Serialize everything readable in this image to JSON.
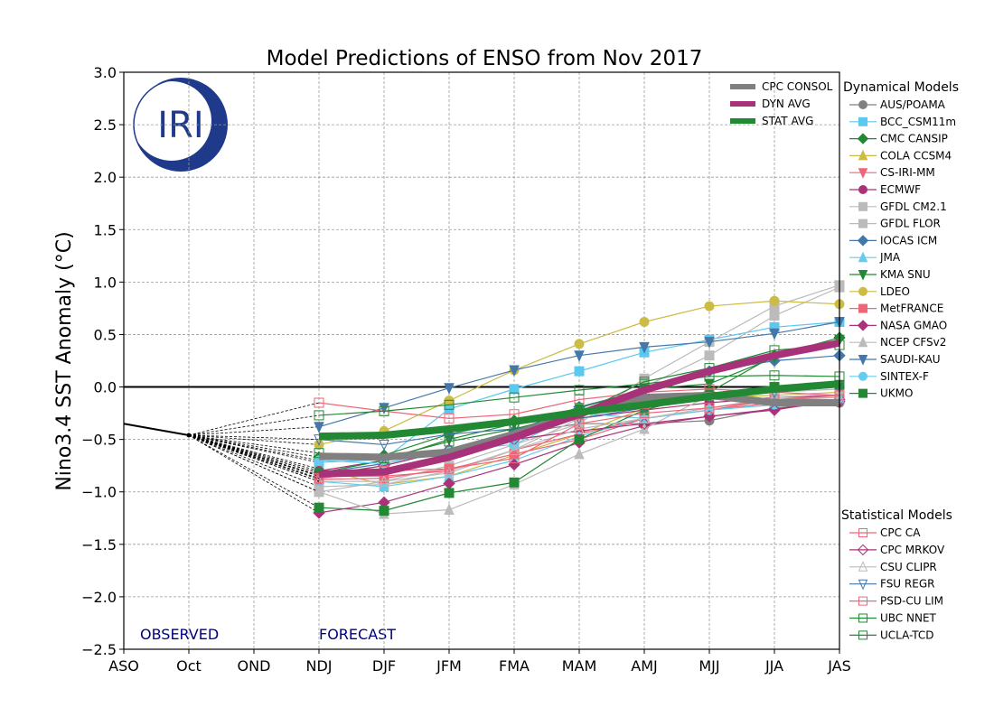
{
  "chart_data": {
    "type": "line",
    "title": "Model Predictions of ENSO from Nov 2017",
    "ylabel": "Nino3.4 SST Anomaly (°C)",
    "xlabel": "",
    "categories": [
      "ASO",
      "Oct",
      "OND",
      "NDJ",
      "DJF",
      "JFM",
      "FMA",
      "MAM",
      "AMJ",
      "MJJ",
      "JJA",
      "JAS"
    ],
    "ylim": [
      -2.5,
      3.0
    ],
    "yticks": [
      "−2.5",
      "−2.0",
      "−1.5",
      "−1.0",
      "−0.5",
      "0.0",
      "0.5",
      "1.0",
      "1.5",
      "2.0",
      "2.5",
      "3.0"
    ],
    "grid": true,
    "annotations": {
      "observed": "OBSERVED",
      "forecast": "FORECAST"
    },
    "logo": "IRI",
    "observed": {
      "categories": [
        "ASO",
        "Oct"
      ],
      "values": [
        -0.35,
        -0.46
      ],
      "color": "#000000"
    },
    "forecast_categories": [
      "NDJ",
      "DJF",
      "JFM",
      "FMA",
      "MAM",
      "AMJ",
      "MJJ",
      "JJA",
      "JAS"
    ],
    "averages": [
      {
        "name": "CPC CONSOL",
        "color": "#808080",
        "values": [
          -0.66,
          -0.67,
          -0.62,
          -0.45,
          -0.25,
          -0.1,
          -0.08,
          -0.15,
          -0.15
        ]
      },
      {
        "name": "DYN AVG",
        "color": "#a8327a",
        "values": [
          -0.83,
          -0.81,
          -0.67,
          -0.48,
          -0.26,
          -0.03,
          0.15,
          0.3,
          0.42
        ]
      },
      {
        "name": "STAT AVG",
        "color": "#228833",
        "values": [
          -0.47,
          -0.46,
          -0.4,
          -0.33,
          -0.24,
          -0.17,
          -0.09,
          -0.02,
          0.03
        ]
      }
    ],
    "dynamical_title": "Dynamical Models",
    "dynamical": [
      {
        "name": "AUS/POAMA",
        "color": "#808080",
        "marker": "circle",
        "values": [
          -0.84,
          -0.75,
          -0.6,
          -0.45,
          -0.35,
          -0.35,
          -0.32,
          -0.2,
          -0.15
        ]
      },
      {
        "name": "BCC_CSM11m",
        "color": "#5bc8f0",
        "marker": "square",
        "values": [
          -0.72,
          -0.69,
          -0.21,
          -0.02,
          0.15,
          0.33,
          0.45,
          0.57,
          0.62
        ]
      },
      {
        "name": "CMC CANSIP",
        "color": "#228833",
        "marker": "diamond",
        "values": [
          -0.67,
          -0.65,
          -0.45,
          -0.32,
          -0.23,
          -0.18,
          -0.05,
          0.3,
          0.47
        ]
      },
      {
        "name": "COLA CCSM4",
        "color": "#ccbb44",
        "marker": "triangle-up",
        "values": [
          -0.78,
          -0.93,
          -0.85,
          -0.65,
          -0.45,
          -0.2,
          -0.1,
          -0.08,
          -0.05
        ]
      },
      {
        "name": "CS-IRI-MM",
        "color": "#ee6677",
        "marker": "triangle-down",
        "values": [
          -0.85,
          -0.85,
          -0.8,
          -0.6,
          -0.45,
          -0.3,
          -0.22,
          -0.15,
          -0.12
        ]
      },
      {
        "name": "ECMWF",
        "color": "#aa3377",
        "marker": "circle",
        "values": [
          -0.8,
          -0.7,
          -0.6,
          -0.45,
          -0.3,
          -0.22,
          -0.15,
          -0.1,
          -0.08
        ]
      },
      {
        "name": "GFDL CM2.1",
        "color": "#bbbbbb",
        "marker": "square",
        "values": [
          -1.0,
          -0.9,
          -0.75,
          -0.55,
          -0.35,
          0.08,
          0.43,
          0.77,
          0.97
        ]
      },
      {
        "name": "GFDL FLOR",
        "color": "#bbbbbb",
        "marker": "square",
        "values": [
          -0.95,
          -0.93,
          -0.8,
          -0.6,
          -0.3,
          0.0,
          0.3,
          0.68,
          0.95
        ]
      },
      {
        "name": "IOCAS ICM",
        "color": "#4477aa",
        "marker": "diamond",
        "values": [
          -0.82,
          -0.73,
          -0.6,
          -0.42,
          -0.19,
          -0.03,
          0.15,
          0.25,
          0.3
        ]
      },
      {
        "name": "JMA",
        "color": "#66ccee",
        "marker": "triangle-up",
        "values": [
          -0.9,
          -0.95,
          -0.85,
          -0.7,
          -0.47,
          -0.3,
          -0.22,
          -0.17,
          -0.12
        ]
      },
      {
        "name": "KMA SNU",
        "color": "#228833",
        "marker": "triangle-down",
        "values": [
          -0.82,
          -0.7,
          -0.5,
          -0.35,
          -0.2,
          -0.02,
          0.03,
          0.28,
          0.45
        ]
      },
      {
        "name": "LDEO",
        "color": "#ccbb44",
        "marker": "circle",
        "values": [
          -0.55,
          -0.42,
          -0.13,
          0.16,
          0.41,
          0.62,
          0.77,
          0.82,
          0.79
        ]
      },
      {
        "name": "MetFRANCE",
        "color": "#ee6677",
        "marker": "square",
        "values": [
          -0.88,
          -0.87,
          -0.78,
          -0.64,
          -0.5,
          -0.3,
          -0.22,
          -0.12,
          -0.1
        ]
      },
      {
        "name": "NASA GMAO",
        "color": "#aa3377",
        "marker": "diamond",
        "values": [
          -1.2,
          -1.1,
          -0.92,
          -0.74,
          -0.53,
          -0.37,
          -0.28,
          -0.21,
          -0.14
        ]
      },
      {
        "name": "NCEP CFSv2",
        "color": "#bbbbbb",
        "marker": "triangle-up",
        "values": [
          -1.0,
          -1.21,
          -1.17,
          -0.93,
          -0.64,
          -0.4,
          -0.08,
          -0.05,
          -0.02
        ]
      },
      {
        "name": "SAUDI-KAU",
        "color": "#4477aa",
        "marker": "triangle-down",
        "values": [
          -0.38,
          -0.2,
          -0.01,
          0.16,
          0.3,
          0.38,
          0.43,
          0.51,
          0.62
        ]
      },
      {
        "name": "SINTEX-F",
        "color": "#66ccee",
        "marker": "circle",
        "values": [
          -0.7,
          -0.73,
          -0.6,
          -0.55,
          -0.25,
          -0.3,
          -0.22,
          -0.17,
          -0.12
        ]
      },
      {
        "name": "UKMO",
        "color": "#228833",
        "marker": "square",
        "values": [
          -1.15,
          -1.18,
          -1.01,
          -0.91,
          -0.5,
          -0.22,
          -0.06,
          0.0,
          0.02
        ]
      }
    ],
    "statistical_title": "Statistical Models",
    "statistical": [
      {
        "name": "CPC CA",
        "color": "#ee6677",
        "marker": "square",
        "values": [
          -0.15,
          -0.23,
          -0.3,
          -0.26,
          -0.12,
          -0.05,
          -0.02,
          -0.05,
          -0.08
        ]
      },
      {
        "name": "CPC MRKOV",
        "color": "#aa3377",
        "marker": "diamond",
        "values": [
          -0.85,
          -0.75,
          -0.6,
          -0.5,
          -0.42,
          -0.35,
          -0.28,
          -0.22,
          -0.12
        ]
      },
      {
        "name": "CSU CLIPR",
        "color": "#bbbbbb",
        "marker": "triangle-up",
        "values": [
          -0.9,
          -0.9,
          -0.82,
          -0.6,
          -0.4,
          -0.3,
          -0.2,
          -0.1,
          -0.1
        ]
      },
      {
        "name": "FSU REGR",
        "color": "#4477aa",
        "marker": "triangle-down",
        "values": [
          -0.5,
          -0.55,
          -0.45,
          -0.4,
          -0.3,
          -0.2,
          -0.1,
          -0.05,
          0.0
        ]
      },
      {
        "name": "PSD-CU LIM",
        "color": "#ee6677",
        "marker": "square",
        "values": [
          -0.87,
          -0.8,
          -0.78,
          -0.68,
          -0.35,
          -0.25,
          -0.2,
          -0.12,
          -0.08
        ]
      },
      {
        "name": "UBC NNET",
        "color": "#228833",
        "marker": "square",
        "values": [
          -0.27,
          -0.23,
          -0.17,
          -0.1,
          -0.03,
          0.03,
          0.1,
          0.11,
          0.1
        ]
      },
      {
        "name": "UCLA-TCD",
        "color": "#228833",
        "marker": "square",
        "values": [
          -0.63,
          -0.68,
          -0.52,
          -0.4,
          -0.25,
          0.05,
          0.18,
          0.35,
          0.4
        ]
      }
    ]
  }
}
